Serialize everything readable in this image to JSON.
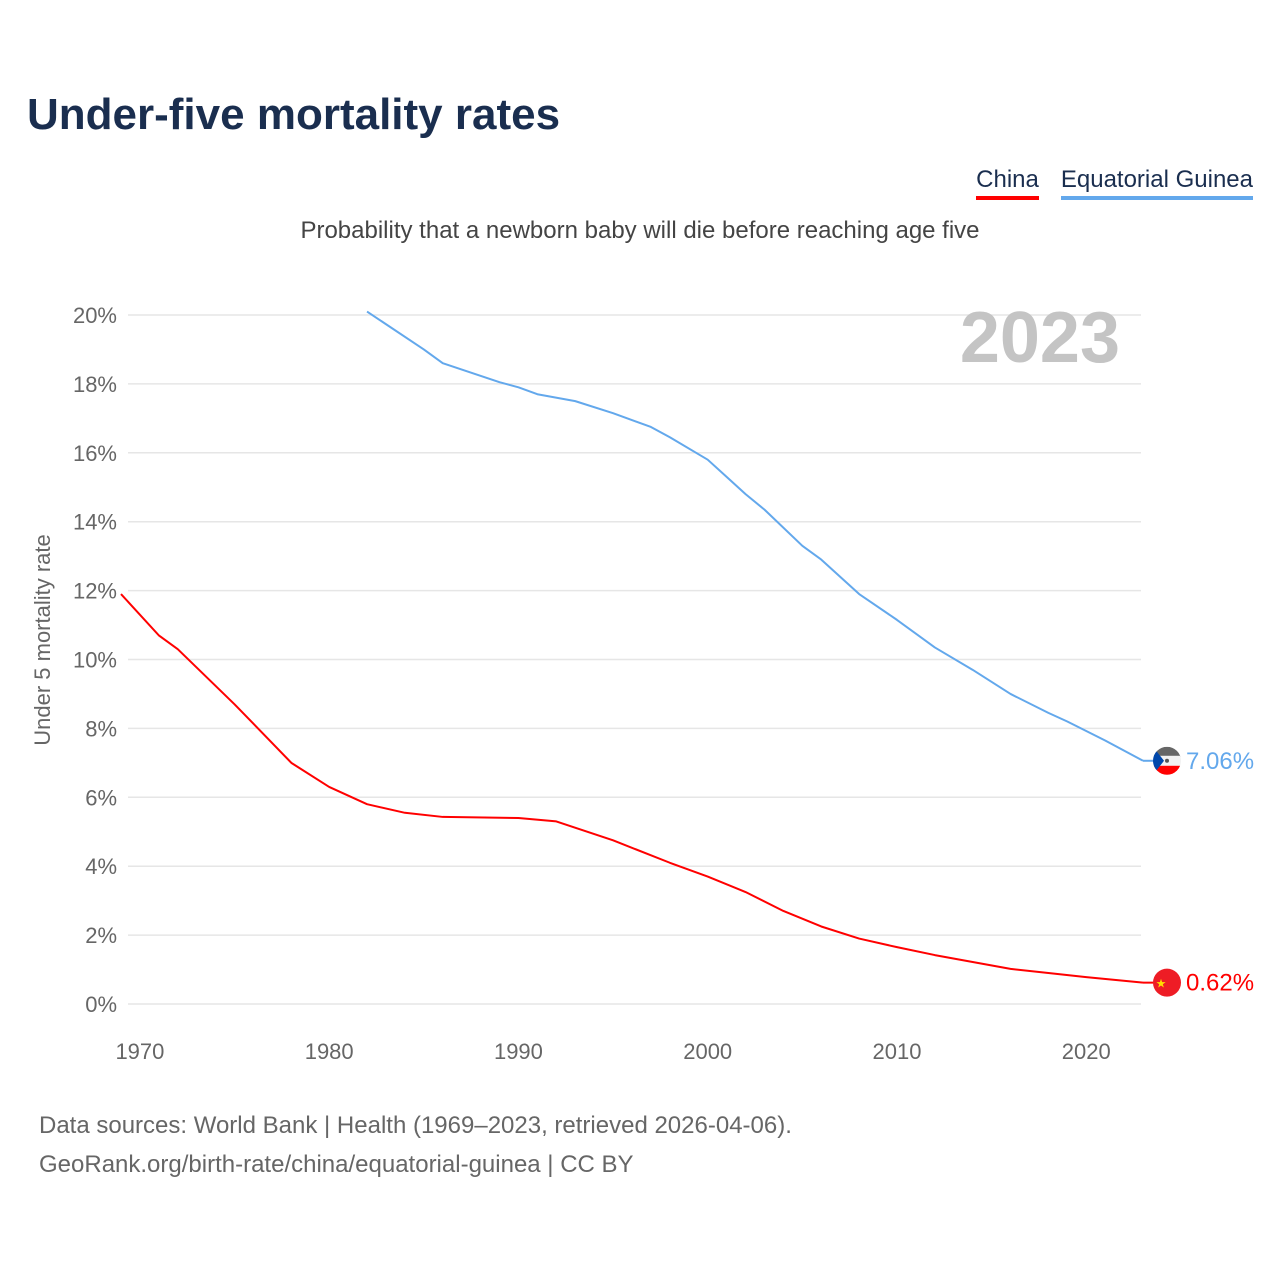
{
  "title": "Under-five mortality rates",
  "subtitle": "Probability that a newborn baby will die before reaching age five",
  "year_watermark": "2023",
  "source_line1": "Data sources: World Bank | Health (1969–2023, retrieved 2026-04-06).",
  "source_line2": "GeoRank.org/birth-rate/china/equatorial-guinea | CC BY",
  "chart_data": {
    "type": "line",
    "title": "Under-five mortality rates",
    "xlabel": "",
    "ylabel": "Under 5 mortality rate",
    "xlim": [
      1969,
      2023
    ],
    "ylim": [
      0,
      20
    ],
    "x_ticks": [
      "1970",
      "1980",
      "1990",
      "2000",
      "2010",
      "2020"
    ],
    "y_ticks": [
      "0%",
      "2%",
      "4%",
      "6%",
      "8%",
      "10%",
      "12%",
      "14%",
      "16%",
      "18%",
      "20%"
    ],
    "grid": true,
    "legend_placement": "top-right",
    "series": [
      {
        "name": "China",
        "color": "#ff0000",
        "end_label": "0.62%",
        "flag": "china-flag",
        "x": [
          1969,
          1971,
          1972,
          1975,
          1978,
          1980,
          1982,
          1984,
          1986,
          1990,
          1992,
          1995,
          1998,
          2000,
          2002,
          2004,
          2006,
          2008,
          2010,
          2012,
          2014,
          2016,
          2018,
          2020,
          2023
        ],
        "y": [
          11.9,
          10.7,
          10.3,
          8.7,
          7.0,
          6.3,
          5.8,
          5.55,
          5.43,
          5.4,
          5.3,
          4.75,
          4.1,
          3.7,
          3.25,
          2.7,
          2.25,
          1.9,
          1.65,
          1.42,
          1.22,
          1.02,
          0.9,
          0.78,
          0.62
        ]
      },
      {
        "name": "Equatorial Guinea",
        "color": "#63a8ec",
        "end_label": "7.06%",
        "flag": "equatorial-guinea-flag",
        "x": [
          1982,
          1985,
          1986,
          1989,
          1990,
          1991,
          1993,
          1995,
          1997,
          1998,
          2000,
          2001,
          2002,
          2003,
          2005,
          2006,
          2008,
          2010,
          2012,
          2014,
          2016,
          2018,
          2019,
          2021,
          2023
        ],
        "y": [
          20.1,
          19.0,
          18.6,
          18.05,
          17.9,
          17.7,
          17.5,
          17.15,
          16.75,
          16.45,
          15.8,
          15.3,
          14.8,
          14.35,
          13.3,
          12.9,
          11.9,
          11.15,
          10.35,
          9.7,
          9.0,
          8.45,
          8.2,
          7.65,
          7.06
        ]
      }
    ]
  }
}
